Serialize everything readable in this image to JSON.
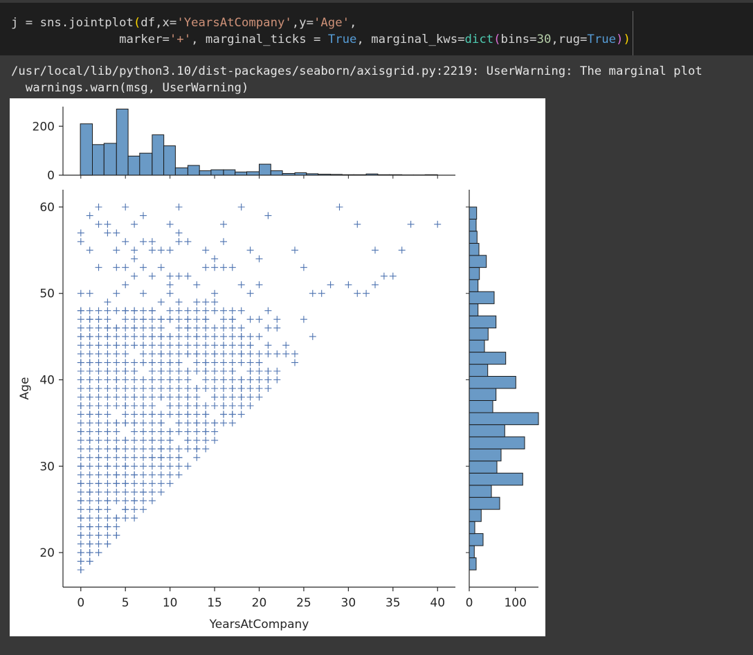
{
  "code": {
    "line1": {
      "pre": "j = sns.jointplot",
      "b1": "(",
      "a": "df,x=",
      "s1": "'YearsAtCompany'",
      "b": ",y=",
      "s2": "'Age'",
      "c": ","
    },
    "line2": {
      "pre": "               marker=",
      "s1": "'+'",
      "a": ", marginal_ticks = ",
      "k1": "True",
      "b": ", marginal_kws=",
      "fn": "dict",
      "b2": "(",
      "c": "bins=",
      "n1": "30",
      "d": ",rug=",
      "k2": "True",
      "b3": ")",
      "b4": ")"
    }
  },
  "output": {
    "warning_line1": "/usr/local/lib/python3.10/dist-packages/seaborn/axisgrid.py:2219: UserWarning: The marginal plot",
    "warning_line2": "  warnings.warn(msg, UserWarning)"
  },
  "chart_data": {
    "type": "scatter",
    "marker": "+",
    "color": "#4c72b0",
    "hist_color": "#6a9ac6",
    "xlabel": "YearsAtCompany",
    "ylabel": "Age",
    "xlim": [
      -2,
      42
    ],
    "ylim": [
      16,
      62
    ],
    "xticks": [
      0,
      5,
      10,
      15,
      20,
      25,
      30,
      35,
      40
    ],
    "yticks": [
      20,
      30,
      40,
      50,
      60
    ],
    "triangle_boundary": {
      "pairs": [
        [
          0,
          18
        ],
        [
          18,
          36
        ],
        [
          22,
          40
        ]
      ]
    },
    "points": [
      [
        0,
        18
      ],
      [
        0,
        19
      ],
      [
        1,
        19
      ],
      [
        0,
        20
      ],
      [
        1,
        20
      ],
      [
        2,
        20
      ],
      [
        3,
        21
      ],
      [
        4,
        22
      ],
      [
        0,
        56
      ],
      [
        1,
        55
      ],
      [
        2,
        60
      ],
      [
        3,
        57
      ],
      [
        5,
        60
      ],
      [
        6,
        58
      ],
      [
        7,
        59
      ],
      [
        8,
        56
      ],
      [
        9,
        53
      ],
      [
        10,
        58
      ],
      [
        11,
        57
      ],
      [
        12,
        56
      ],
      [
        14,
        55
      ],
      [
        15,
        54
      ],
      [
        16,
        58
      ],
      [
        18,
        60
      ],
      [
        19,
        55
      ],
      [
        20,
        54
      ],
      [
        21,
        59
      ],
      [
        22,
        46
      ],
      [
        24,
        55
      ],
      [
        25,
        53
      ],
      [
        29,
        60
      ],
      [
        30,
        51
      ],
      [
        31,
        58
      ],
      [
        32,
        50
      ],
      [
        33,
        55
      ],
      [
        34,
        52
      ],
      [
        35,
        52
      ],
      [
        36,
        55
      ],
      [
        37,
        58
      ],
      [
        40,
        58
      ],
      [
        11,
        60
      ],
      [
        20,
        51
      ],
      [
        26,
        50
      ],
      [
        27,
        50
      ],
      [
        24,
        42
      ],
      [
        23,
        43
      ],
      [
        18,
        45
      ],
      [
        19,
        44
      ],
      [
        20,
        45
      ],
      [
        21,
        48
      ],
      [
        17,
        43
      ],
      [
        16,
        44
      ],
      [
        13,
        43
      ],
      [
        12,
        46
      ],
      [
        11,
        44
      ],
      [
        10,
        45
      ],
      [
        14,
        47
      ],
      [
        15,
        49
      ],
      [
        15,
        50
      ],
      [
        13,
        51
      ],
      [
        14,
        53
      ],
      [
        15,
        53
      ],
      [
        17,
        53
      ],
      [
        19,
        50
      ],
      [
        21,
        46
      ],
      [
        22,
        43
      ],
      [
        20,
        42
      ],
      [
        19,
        40
      ],
      [
        18,
        38
      ],
      [
        17,
        39
      ],
      [
        16,
        37
      ],
      [
        15,
        38
      ],
      [
        14,
        36
      ],
      [
        13,
        37
      ],
      [
        12,
        36
      ],
      [
        11,
        35
      ],
      [
        10,
        34
      ],
      [
        9,
        31
      ],
      [
        8,
        28
      ],
      [
        7,
        27
      ],
      [
        6,
        26
      ],
      [
        5,
        25
      ],
      [
        4,
        24
      ],
      [
        3,
        23
      ],
      [
        2,
        22
      ],
      [
        1,
        21
      ],
      [
        5,
        30
      ],
      [
        6,
        32
      ],
      [
        7,
        34
      ],
      [
        8,
        36
      ],
      [
        9,
        38
      ],
      [
        10,
        40
      ],
      [
        11,
        42
      ],
      [
        12,
        41
      ],
      [
        13,
        39
      ],
      [
        14,
        41
      ],
      [
        15,
        43
      ],
      [
        16,
        40
      ],
      [
        17,
        41
      ],
      [
        18,
        40
      ],
      [
        19,
        39
      ],
      [
        20,
        38
      ],
      [
        21,
        41
      ],
      [
        22,
        41
      ],
      [
        20,
        40
      ],
      [
        19,
        41
      ],
      [
        18,
        39
      ],
      [
        9,
        45
      ],
      [
        8,
        48
      ],
      [
        7,
        50
      ],
      [
        6,
        52
      ],
      [
        5,
        51
      ],
      [
        4,
        53
      ],
      [
        3,
        49
      ],
      [
        2,
        47
      ],
      [
        1,
        45
      ],
      [
        9,
        49
      ],
      [
        10,
        47
      ],
      [
        11,
        49
      ],
      [
        12,
        47
      ],
      [
        13,
        45
      ],
      [
        14,
        42
      ],
      [
        8,
        42
      ],
      [
        7,
        44
      ],
      [
        6,
        46
      ],
      [
        5,
        48
      ],
      [
        4,
        46
      ],
      [
        3,
        45
      ],
      [
        2,
        44
      ],
      [
        1,
        42
      ],
      [
        0,
        40
      ],
      [
        1,
        38
      ],
      [
        2,
        36
      ],
      [
        3,
        34
      ],
      [
        4,
        32
      ],
      [
        5,
        28
      ],
      [
        6,
        29
      ],
      [
        7,
        30
      ],
      [
        8,
        31
      ],
      [
        9,
        32
      ],
      [
        10,
        33
      ],
      [
        11,
        31
      ],
      [
        12,
        33
      ],
      [
        13,
        35
      ],
      [
        14,
        34
      ],
      [
        15,
        35
      ],
      [
        16,
        36
      ],
      [
        17,
        36
      ],
      [
        0,
        30
      ],
      [
        0,
        34
      ],
      [
        0,
        37
      ],
      [
        0,
        42
      ],
      [
        0,
        45
      ],
      [
        0,
        48
      ],
      [
        0,
        50
      ],
      [
        0,
        28
      ],
      [
        0,
        26
      ],
      [
        0,
        24
      ],
      [
        1,
        27
      ],
      [
        1,
        33
      ],
      [
        1,
        36
      ],
      [
        1,
        40
      ],
      [
        1,
        47
      ],
      [
        1,
        50
      ],
      [
        2,
        28
      ],
      [
        2,
        31
      ],
      [
        2,
        39
      ],
      [
        2,
        42
      ],
      [
        2,
        53
      ],
      [
        3,
        27
      ],
      [
        3,
        30
      ],
      [
        3,
        38
      ],
      [
        3,
        41
      ],
      [
        3,
        46
      ],
      [
        4,
        28
      ],
      [
        4,
        35
      ],
      [
        4,
        40
      ],
      [
        4,
        44
      ],
      [
        4,
        55
      ],
      [
        5,
        33
      ],
      [
        5,
        37
      ],
      [
        5,
        41
      ],
      [
        5,
        45
      ],
      [
        5,
        56
      ],
      [
        6,
        38
      ],
      [
        6,
        41
      ],
      [
        6,
        44
      ],
      [
        6,
        48
      ],
      [
        6,
        54
      ],
      [
        7,
        37
      ],
      [
        7,
        40
      ],
      [
        7,
        47
      ],
      [
        7,
        53
      ],
      [
        8,
        33
      ],
      [
        8,
        39
      ],
      [
        8,
        45
      ],
      [
        8,
        52
      ],
      [
        9,
        35
      ],
      [
        9,
        41
      ],
      [
        9,
        43
      ],
      [
        10,
        37
      ],
      [
        10,
        42
      ],
      [
        10,
        50
      ],
      [
        11,
        38
      ],
      [
        11,
        52
      ],
      [
        12,
        38
      ],
      [
        12,
        43
      ],
      [
        13,
        32
      ],
      [
        2,
        25
      ],
      [
        1,
        23
      ],
      [
        0,
        22
      ],
      [
        3,
        26
      ],
      [
        4,
        29
      ],
      [
        5,
        35
      ],
      [
        6,
        35
      ],
      [
        7,
        42
      ],
      [
        8,
        40
      ],
      [
        9,
        47
      ],
      [
        10,
        51
      ],
      [
        11,
        39
      ],
      [
        12,
        37
      ],
      [
        3,
        58
      ],
      [
        4,
        57
      ],
      [
        2,
        58
      ],
      [
        1,
        59
      ],
      [
        0,
        57
      ],
      [
        4,
        50
      ],
      [
        5,
        53
      ],
      [
        6,
        55
      ],
      [
        7,
        56
      ],
      [
        8,
        55
      ],
      [
        9,
        55
      ],
      [
        10,
        55
      ],
      [
        23,
        44
      ],
      [
        25,
        47
      ],
      [
        26,
        45
      ],
      [
        21,
        43
      ],
      [
        21,
        44
      ],
      [
        21,
        40
      ],
      [
        20,
        39
      ],
      [
        24,
        43
      ],
      [
        33,
        51
      ],
      [
        31,
        50
      ],
      [
        28,
        51
      ],
      [
        16,
        45
      ],
      [
        17,
        47
      ],
      [
        18,
        48
      ],
      [
        19,
        47
      ],
      [
        20,
        47
      ],
      [
        22,
        47
      ],
      [
        18,
        51
      ],
      [
        18,
        43
      ],
      [
        16,
        56
      ],
      [
        16,
        53
      ],
      [
        12,
        52
      ],
      [
        13,
        49
      ],
      [
        14,
        49
      ],
      [
        10,
        52
      ],
      [
        11,
        56
      ]
    ],
    "top_hist": {
      "xlim": [
        -2,
        42
      ],
      "ylim": [
        0,
        280
      ],
      "yticks": [
        0,
        200
      ],
      "bins": [
        [
          -0.05,
          1.3,
          210
        ],
        [
          1.3,
          2.6,
          125
        ],
        [
          2.6,
          4.0,
          130
        ],
        [
          4.0,
          5.3,
          270
        ],
        [
          5.3,
          6.6,
          78
        ],
        [
          6.6,
          8.0,
          90
        ],
        [
          8.0,
          9.3,
          165
        ],
        [
          9.3,
          10.6,
          120
        ],
        [
          10.6,
          12.0,
          30
        ],
        [
          12.0,
          13.3,
          40
        ],
        [
          13.3,
          14.6,
          18
        ],
        [
          14.6,
          16.0,
          22
        ],
        [
          16.0,
          17.3,
          22
        ],
        [
          17.3,
          18.6,
          13
        ],
        [
          18.6,
          20.0,
          14
        ],
        [
          20.0,
          21.3,
          45
        ],
        [
          21.3,
          22.6,
          18
        ],
        [
          22.6,
          24.0,
          7
        ],
        [
          24.0,
          25.3,
          10
        ],
        [
          25.3,
          26.6,
          6
        ],
        [
          26.6,
          28.0,
          4
        ],
        [
          28.0,
          29.3,
          3
        ],
        [
          29.3,
          30.6,
          2
        ],
        [
          30.6,
          32.0,
          2
        ],
        [
          32.0,
          33.3,
          5
        ],
        [
          33.3,
          34.6,
          2
        ],
        [
          34.6,
          36.0,
          2
        ],
        [
          36.0,
          37.3,
          1
        ],
        [
          37.3,
          38.6,
          1
        ],
        [
          38.6,
          40.0,
          2
        ]
      ]
    },
    "right_hist": {
      "xlim": [
        0,
        150
      ],
      "xticks": [
        0,
        100
      ],
      "ylim": [
        16,
        62
      ],
      "bins": [
        [
          18.0,
          19.4,
          15
        ],
        [
          19.4,
          20.8,
          11
        ],
        [
          20.8,
          22.2,
          30
        ],
        [
          22.2,
          23.6,
          12
        ],
        [
          23.6,
          25.0,
          26
        ],
        [
          25.0,
          26.4,
          66
        ],
        [
          26.4,
          27.8,
          48
        ],
        [
          27.8,
          29.2,
          116
        ],
        [
          29.2,
          30.6,
          60
        ],
        [
          30.6,
          32.0,
          69
        ],
        [
          32.0,
          33.4,
          120
        ],
        [
          33.4,
          34.8,
          77
        ],
        [
          34.8,
          36.2,
          150
        ],
        [
          36.2,
          37.6,
          51
        ],
        [
          37.6,
          39.0,
          58
        ],
        [
          39.0,
          40.4,
          101
        ],
        [
          40.4,
          41.8,
          40
        ],
        [
          41.8,
          43.2,
          79
        ],
        [
          43.2,
          44.6,
          33
        ],
        [
          44.6,
          46.0,
          41
        ],
        [
          46.0,
          47.4,
          58
        ],
        [
          47.4,
          48.8,
          19
        ],
        [
          48.8,
          50.2,
          54
        ],
        [
          50.2,
          51.6,
          19
        ],
        [
          51.6,
          53.0,
          22
        ],
        [
          53.0,
          54.4,
          37
        ],
        [
          54.4,
          55.8,
          21
        ],
        [
          55.8,
          57.2,
          17
        ],
        [
          57.2,
          58.6,
          15
        ],
        [
          58.6,
          60.0,
          16
        ]
      ]
    }
  }
}
